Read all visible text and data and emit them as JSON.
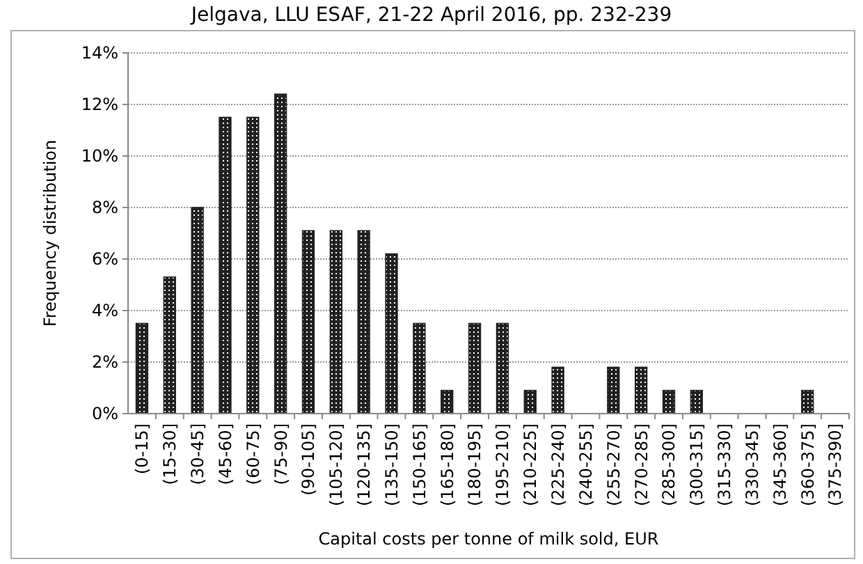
{
  "chart_data": {
    "type": "bar",
    "title": "Jelgava, LLU ESAF, 21-22 April 2016, pp. 232-239",
    "xlabel": "Capital costs per tonne of milk sold, EUR",
    "ylabel": "Frequency distribution",
    "categories": [
      "(0-15]",
      "(15-30]",
      "(30-45]",
      "(45-60]",
      "(60-75]",
      "(75-90]",
      "(90-105]",
      "(105-120]",
      "(120-135]",
      "(135-150]",
      "(150-165]",
      "(165-180]",
      "(180-195]",
      "(195-210]",
      "(210-225]",
      "(225-240]",
      "(240-255]",
      "(255-270]",
      "(270-285]",
      "(285-300]",
      "(300-315]",
      "(315-330]",
      "(330-345]",
      "(345-360]",
      "(360-375]",
      "(375-390]"
    ],
    "values": [
      3.5,
      5.3,
      8.0,
      11.5,
      11.5,
      12.4,
      7.1,
      7.1,
      7.1,
      6.2,
      3.5,
      0.9,
      3.5,
      3.5,
      0.9,
      1.8,
      0,
      1.8,
      1.8,
      0.9,
      0.9,
      0,
      0,
      0,
      0.9,
      0
    ],
    "color": "#222222",
    "ylim": [
      0,
      14
    ],
    "yticks": [
      {
        "value": 0,
        "label": "0%"
      },
      {
        "value": 2,
        "label": "2%"
      },
      {
        "value": 4,
        "label": "4%"
      },
      {
        "value": 6,
        "label": "6%"
      },
      {
        "value": 8,
        "label": "8%"
      },
      {
        "value": 10,
        "label": "10%"
      },
      {
        "value": 12,
        "label": "12%"
      },
      {
        "value": 14,
        "label": "14%"
      }
    ],
    "grid": "y"
  }
}
